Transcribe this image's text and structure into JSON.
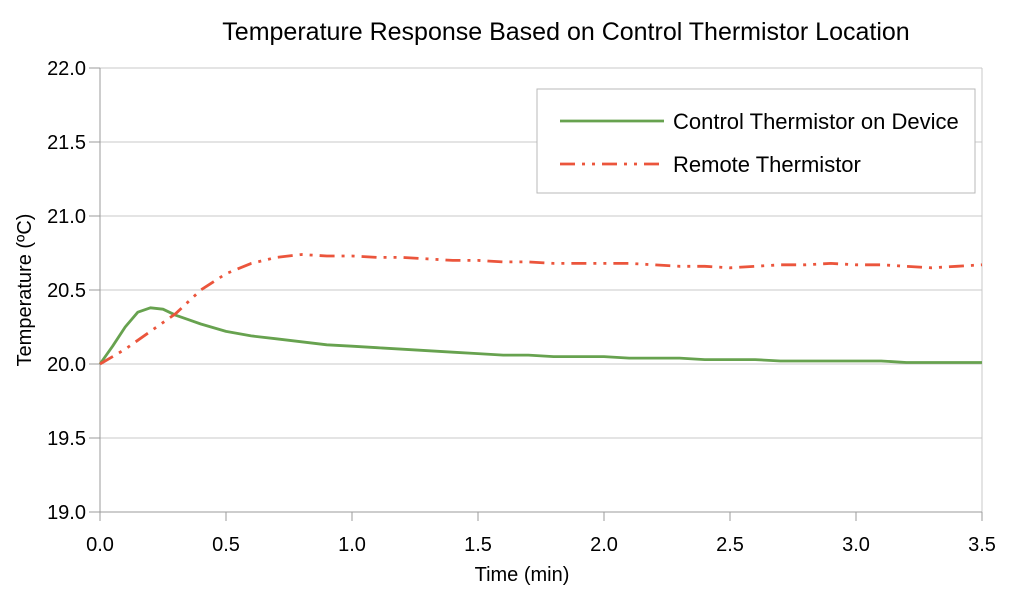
{
  "title": "Temperature Response Based on Control Thermistor Location",
  "axes": {
    "x_label": "Time (min)",
    "y_label": "Temperature (ºC)"
  },
  "legend": {
    "position": "top-right-inside",
    "items": [
      {
        "label": "Control Thermistor on Device",
        "color": "#67a24f",
        "style": "solid"
      },
      {
        "label": "Remote Thermistor",
        "color": "#eb553c",
        "style": "dash-dot-dot"
      }
    ]
  },
  "colors": {
    "background": "#ffffff",
    "grid": "#c9c9c9",
    "axis": "#9b9b9b",
    "legend_border": "#b9b9b9",
    "text": "#000000",
    "series_green": "#67a24f",
    "series_red": "#eb553c"
  },
  "chart_data": {
    "type": "line",
    "title": "Temperature Response Based on Control Thermistor Location",
    "xlabel": "Time (min)",
    "ylabel": "Temperature (ºC)",
    "xlim": [
      0.0,
      3.5
    ],
    "ylim": [
      19.0,
      22.0
    ],
    "x_ticks": [
      0.0,
      0.5,
      1.0,
      1.5,
      2.0,
      2.5,
      3.0,
      3.5
    ],
    "y_ticks": [
      19.0,
      19.5,
      20.0,
      20.5,
      21.0,
      21.5,
      22.0
    ],
    "x_tick_labels": [
      "0.0",
      "0.5",
      "1.0",
      "1.5",
      "2.0",
      "2.5",
      "3.0",
      "3.5"
    ],
    "y_tick_labels": [
      "19.0",
      "19.5",
      "20.0",
      "20.5",
      "21.0",
      "21.5",
      "22.0"
    ],
    "grid": "horizontal",
    "legend_position": "top-right-inside",
    "series": [
      {
        "name": "Control Thermistor on Device",
        "color": "#67a24f",
        "line_style": "solid",
        "x": [
          0.0,
          0.05,
          0.1,
          0.15,
          0.2,
          0.25,
          0.3,
          0.35,
          0.4,
          0.5,
          0.6,
          0.7,
          0.8,
          0.9,
          1.0,
          1.1,
          1.2,
          1.3,
          1.4,
          1.5,
          1.6,
          1.7,
          1.8,
          1.9,
          2.0,
          2.1,
          2.2,
          2.3,
          2.4,
          2.5,
          2.6,
          2.7,
          2.8,
          2.9,
          3.0,
          3.1,
          3.2,
          3.3,
          3.4,
          3.5
        ],
        "y": [
          20.0,
          20.12,
          20.25,
          20.35,
          20.38,
          20.37,
          20.33,
          20.3,
          20.27,
          20.22,
          20.19,
          20.17,
          20.15,
          20.13,
          20.12,
          20.11,
          20.1,
          20.09,
          20.08,
          20.07,
          20.06,
          20.06,
          20.05,
          20.05,
          20.05,
          20.04,
          20.04,
          20.04,
          20.03,
          20.03,
          20.03,
          20.02,
          20.02,
          20.02,
          20.02,
          20.02,
          20.01,
          20.01,
          20.01,
          20.01
        ]
      },
      {
        "name": "Remote Thermistor",
        "color": "#eb553c",
        "line_style": "dash-dot-dot",
        "x": [
          0.0,
          0.1,
          0.2,
          0.3,
          0.35,
          0.4,
          0.5,
          0.6,
          0.7,
          0.8,
          0.9,
          1.0,
          1.1,
          1.2,
          1.3,
          1.4,
          1.5,
          1.6,
          1.7,
          1.8,
          1.9,
          2.0,
          2.1,
          2.2,
          2.3,
          2.4,
          2.5,
          2.6,
          2.7,
          2.8,
          2.9,
          3.0,
          3.1,
          3.2,
          3.3,
          3.4,
          3.5
        ],
        "y": [
          20.0,
          20.1,
          20.22,
          20.34,
          20.42,
          20.5,
          20.61,
          20.68,
          20.72,
          20.74,
          20.73,
          20.73,
          20.72,
          20.72,
          20.71,
          20.7,
          20.7,
          20.69,
          20.69,
          20.68,
          20.68,
          20.68,
          20.68,
          20.67,
          20.66,
          20.66,
          20.65,
          20.66,
          20.67,
          20.67,
          20.68,
          20.67,
          20.67,
          20.66,
          20.65,
          20.66,
          20.67
        ]
      }
    ]
  }
}
